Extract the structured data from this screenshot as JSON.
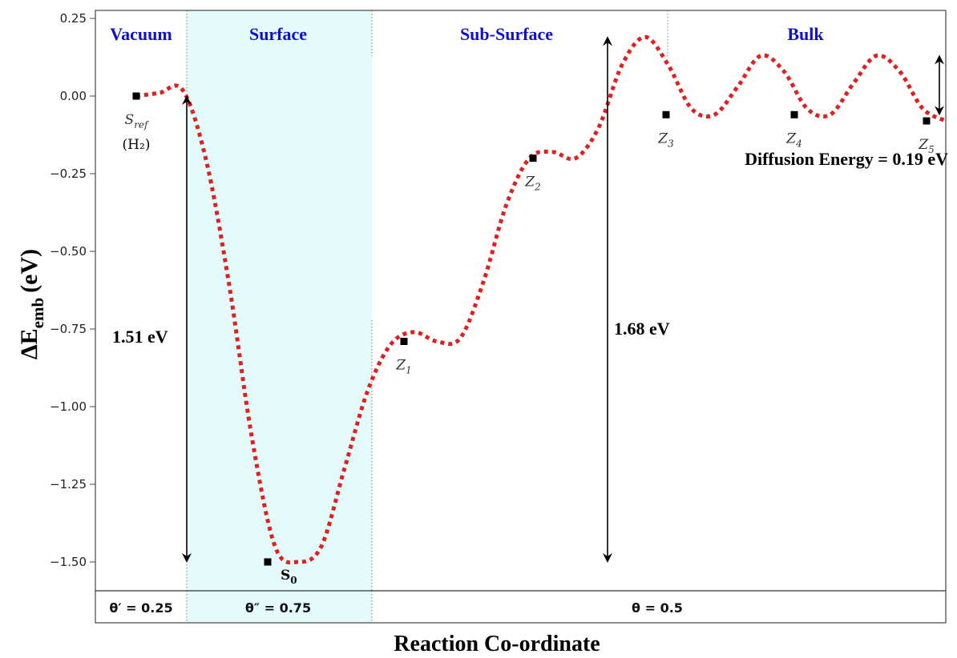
{
  "chart_data": {
    "type": "line",
    "title": "",
    "xlabel": "Reaction Co-ordinate",
    "ylabel": {
      "main": "ΔE",
      "subscript": "emb",
      "unit": "(eV)"
    },
    "ylim": [
      -1.58,
      0.27
    ],
    "yticks": [
      "0.25",
      "0.00",
      "−0.25",
      "−0.50",
      "−0.75",
      "−1.00",
      "−1.25",
      "−1.50"
    ],
    "ytick_values": [
      0.25,
      0.0,
      -0.25,
      -0.5,
      -0.75,
      -1.0,
      -1.25,
      -1.5
    ],
    "grid": false,
    "regions": [
      "Vacuum",
      "Surface",
      "Sub-Surface",
      "Bulk"
    ],
    "coverages": [
      "θ′ = 0.25",
      "θ″ = 0.75",
      "θ = 0.5"
    ],
    "points": [
      {
        "label": "S",
        "sub": "ref",
        "extra": "(H₂)",
        "y": 0.0
      },
      {
        "label": "S",
        "sub": "0",
        "y": -1.5
      },
      {
        "label": "Z",
        "sub": "1",
        "y": -0.79
      },
      {
        "label": "Z",
        "sub": "2",
        "y": -0.2
      },
      {
        "label": "Z",
        "sub": "3",
        "y": -0.06
      },
      {
        "label": "Z",
        "sub": "4",
        "y": -0.06
      },
      {
        "label": "Z",
        "sub": "5",
        "y": -0.08
      }
    ],
    "series": [
      {
        "color": "#e02020",
        "style": "dotted",
        "y": [
          0.0,
          0.01,
          0.02,
          -0.2,
          -0.6,
          -1.1,
          -1.45,
          -1.5,
          -1.45,
          -1.2,
          -0.95,
          -0.8,
          -0.76,
          -0.79,
          -0.78,
          -0.6,
          -0.35,
          -0.2,
          -0.18,
          -0.2,
          -0.1,
          0.1,
          0.19,
          0.1,
          -0.04,
          -0.06,
          0.03,
          0.13,
          0.08,
          -0.04,
          -0.06,
          0.04,
          0.13,
          0.08,
          -0.04,
          -0.08
        ]
      }
    ],
    "annotations": [
      {
        "text": "1.51 eV",
        "from": 0.0,
        "to": -1.5
      },
      {
        "text": "1.68 eV",
        "from": 0.19,
        "to": -1.5
      },
      {
        "text": "Diffusion Energy = 0.19 eV",
        "from": 0.13,
        "to": -0.06
      }
    ]
  }
}
